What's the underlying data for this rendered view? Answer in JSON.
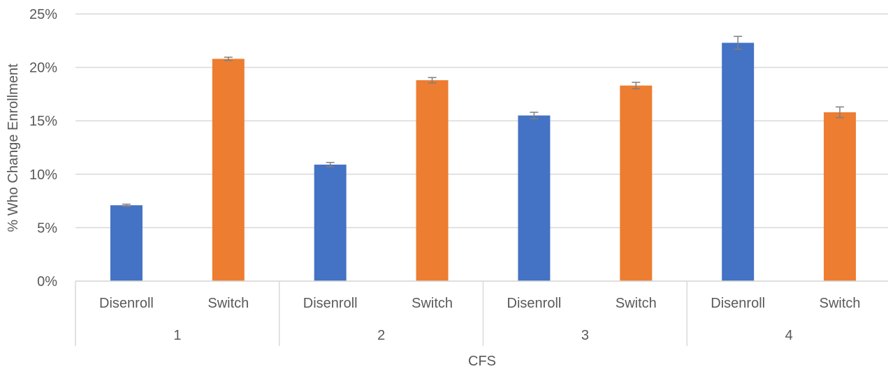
{
  "chart_data": {
    "type": "bar",
    "ylabel": "% Who Change Enrollment",
    "xlabel": "CFS",
    "ylim": [
      0,
      25
    ],
    "y_ticks": [
      "0%",
      "5%",
      "10%",
      "15%",
      "20%",
      "25%"
    ],
    "y_tick_values": [
      0,
      5,
      10,
      15,
      20,
      25
    ],
    "grid": true,
    "groups": [
      "1",
      "2",
      "3",
      "4"
    ],
    "categories": [
      "Disenroll",
      "Switch"
    ],
    "colors": {
      "Disenroll": "#4472C4",
      "Switch": "#ED7D31"
    },
    "bars": [
      {
        "group": "1",
        "category": "Disenroll",
        "value": 7.1,
        "err": 0.1
      },
      {
        "group": "1",
        "category": "Switch",
        "value": 20.8,
        "err": 0.15
      },
      {
        "group": "2",
        "category": "Disenroll",
        "value": 10.9,
        "err": 0.2
      },
      {
        "group": "2",
        "category": "Switch",
        "value": 18.8,
        "err": 0.25
      },
      {
        "group": "3",
        "category": "Disenroll",
        "value": 15.5,
        "err": 0.3
      },
      {
        "group": "3",
        "category": "Switch",
        "value": 18.3,
        "err": 0.3
      },
      {
        "group": "4",
        "category": "Disenroll",
        "value": 22.3,
        "err": 0.6
      },
      {
        "group": "4",
        "category": "Switch",
        "value": 15.8,
        "err": 0.5
      }
    ]
  }
}
